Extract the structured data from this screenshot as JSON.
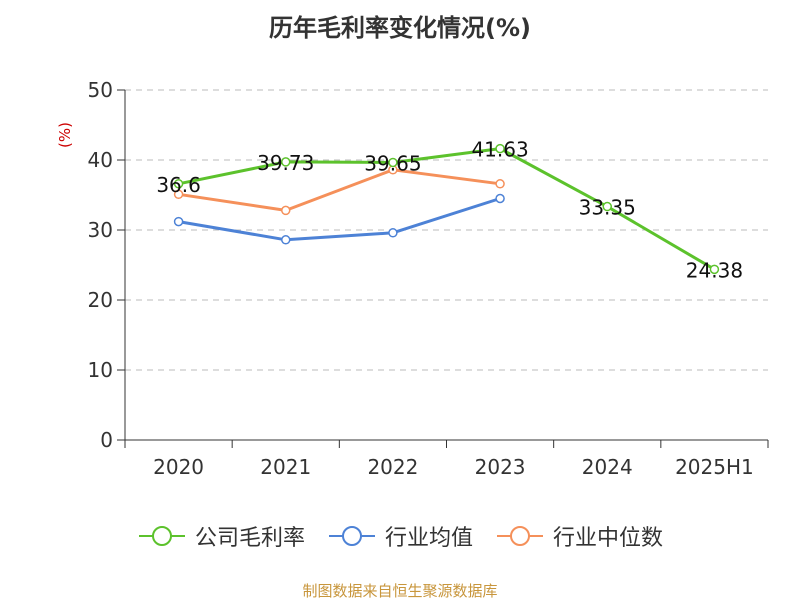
{
  "chart_data": {
    "type": "line",
    "title": "历年毛利率变化情况(%)",
    "ylabel": "(%)",
    "xlabel": "",
    "categories": [
      "2020",
      "2021",
      "2022",
      "2023",
      "2024",
      "2025H1"
    ],
    "yticks": [
      "0",
      "10",
      "20",
      "30",
      "40",
      "50"
    ],
    "ylim": [
      0,
      50
    ],
    "grid": true,
    "legend_position": "bottom",
    "series": [
      {
        "name": "公司毛利率",
        "color": "#5cc22c",
        "values": [
          36.6,
          39.73,
          39.65,
          41.63,
          33.35,
          24.38
        ],
        "labels": [
          "36.6",
          "39.73",
          "39.65",
          "41.63",
          "33.35",
          "24.38"
        ]
      },
      {
        "name": "行业均值",
        "color": "#4d82d6",
        "values": [
          31.2,
          28.6,
          29.6,
          34.5,
          null,
          null
        ]
      },
      {
        "name": "行业中位数",
        "color": "#f5905a",
        "values": [
          35.1,
          32.8,
          38.6,
          36.6,
          null,
          null
        ]
      }
    ]
  },
  "source": "制图数据来自恒生聚源数据库"
}
